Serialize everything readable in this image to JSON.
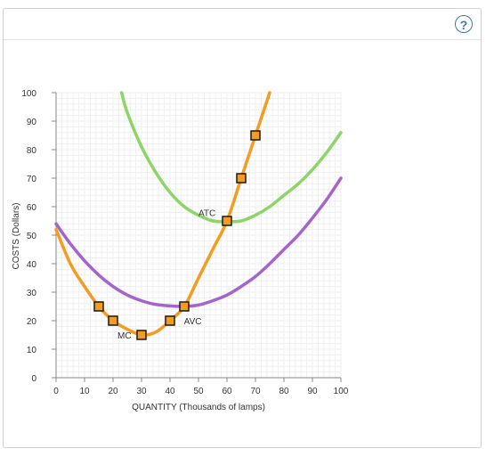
{
  "help": {
    "label": "?"
  },
  "chart_data": {
    "type": "line",
    "xlabel": "QUANTITY (Thousands of lamps)",
    "ylabel": "COSTS (Dollars)",
    "xlim": [
      0,
      100
    ],
    "ylim": [
      0,
      100
    ],
    "xticks": [
      "0",
      "10",
      "20",
      "30",
      "40",
      "50",
      "60",
      "70",
      "80",
      "90",
      "100"
    ],
    "yticks": [
      "0",
      "10",
      "20",
      "30",
      "40",
      "50",
      "60",
      "70",
      "80",
      "90",
      "100"
    ],
    "grid": true,
    "colors": {
      "MC": "#f39c1f",
      "ATC": "#8ed567",
      "AVC": "#a564cc",
      "marker_fill": "#f39c1f",
      "marker_stroke": "#1a1a1a",
      "grid": "#eeeeee",
      "axis": "#888888"
    },
    "series": [
      {
        "name": "MC",
        "x": [
          0,
          5,
          10,
          15,
          20,
          25,
          30,
          35,
          40,
          45,
          50,
          55,
          60,
          65,
          70,
          75
        ],
        "y": [
          52,
          40,
          32,
          25,
          20,
          17,
          15,
          16,
          20,
          25,
          35,
          45,
          55,
          70,
          85,
          100
        ]
      },
      {
        "name": "ATC",
        "x": [
          23,
          25,
          30,
          35,
          40,
          45,
          50,
          55,
          60,
          65,
          70,
          75,
          80,
          85,
          90,
          95,
          100
        ],
        "y": [
          100,
          93,
          81,
          72,
          65,
          60,
          57,
          55,
          54.8,
          55,
          57,
          60,
          64,
          68,
          73,
          79,
          86
        ]
      },
      {
        "name": "AVC",
        "x": [
          0,
          5,
          10,
          15,
          20,
          25,
          30,
          35,
          40,
          45,
          50,
          55,
          60,
          65,
          70,
          75,
          80,
          85,
          90,
          95,
          100
        ],
        "y": [
          54,
          47,
          41,
          36,
          32,
          29,
          27,
          25.7,
          25.2,
          25,
          25.5,
          27,
          29,
          32,
          35.5,
          40,
          45,
          50,
          56,
          62.5,
          70
        ]
      }
    ],
    "markers": {
      "x": [
        15,
        20,
        30,
        40,
        45,
        60,
        65,
        70
      ],
      "y": [
        25,
        20,
        15,
        20,
        25,
        55,
        70,
        85
      ]
    },
    "annotations": [
      {
        "text": "MC",
        "x": 24,
        "y": 15
      },
      {
        "text": "ATC",
        "x": 53,
        "y": 58
      },
      {
        "text": "AVC",
        "x": 48,
        "y": 20
      }
    ]
  }
}
